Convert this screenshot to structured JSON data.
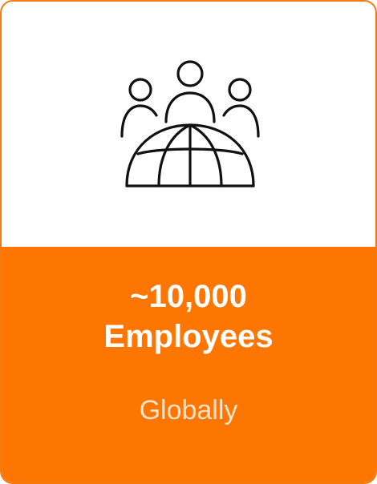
{
  "card": {
    "icon": "people-globe-icon",
    "stat_line1": "~10,000",
    "stat_line2": "Employees",
    "caption": "Globally",
    "colors": {
      "accent": "#fd7602",
      "border": "#f57a10",
      "caption_text": "#ffe3c8",
      "icon_stroke": "#111111"
    }
  }
}
